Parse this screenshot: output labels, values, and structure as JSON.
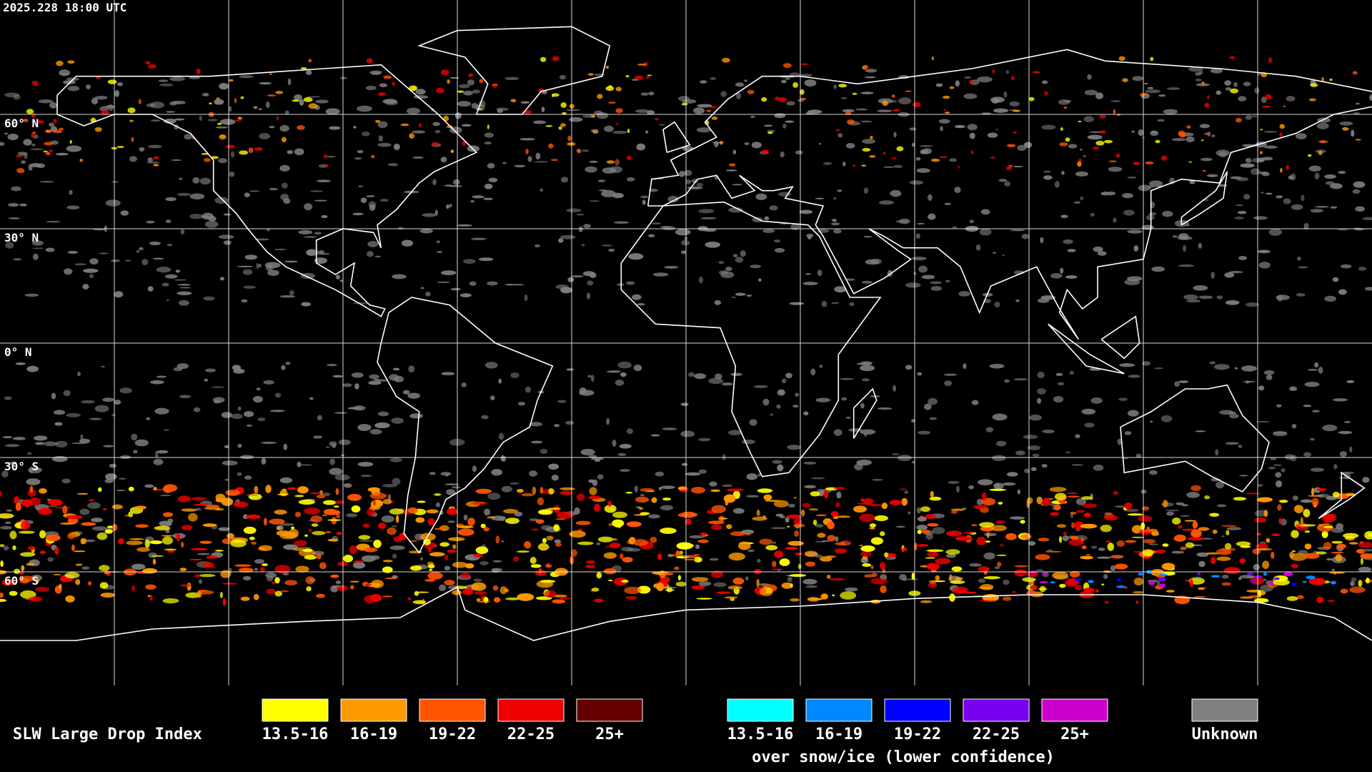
{
  "timestamp": "2025.228 18:00 UTC",
  "latitude_labels": [
    "60° N",
    "30° N",
    "0° N",
    "30° S",
    "60° S"
  ],
  "legend": {
    "title": "SLW Large Drop Index",
    "liquid": [
      {
        "label": "13.5-16",
        "color": "#ffff00"
      },
      {
        "label": "16-19",
        "color": "#ff9900"
      },
      {
        "label": "19-22",
        "color": "#ff5500"
      },
      {
        "label": "22-25",
        "color": "#ee0000"
      },
      {
        "label": "25+",
        "color": "#660000"
      }
    ],
    "snow_ice": [
      {
        "label": "13.5-16",
        "color": "#00ffff"
      },
      {
        "label": "16-19",
        "color": "#0088ff"
      },
      {
        "label": "19-22",
        "color": "#0000ff"
      },
      {
        "label": "22-25",
        "color": "#7700ee"
      },
      {
        "label": "25+",
        "color": "#cc00cc"
      }
    ],
    "snow_ice_caption": "over snow/ice (lower confidence)",
    "unknown": {
      "label": "Unknown",
      "color": "#808080"
    }
  }
}
